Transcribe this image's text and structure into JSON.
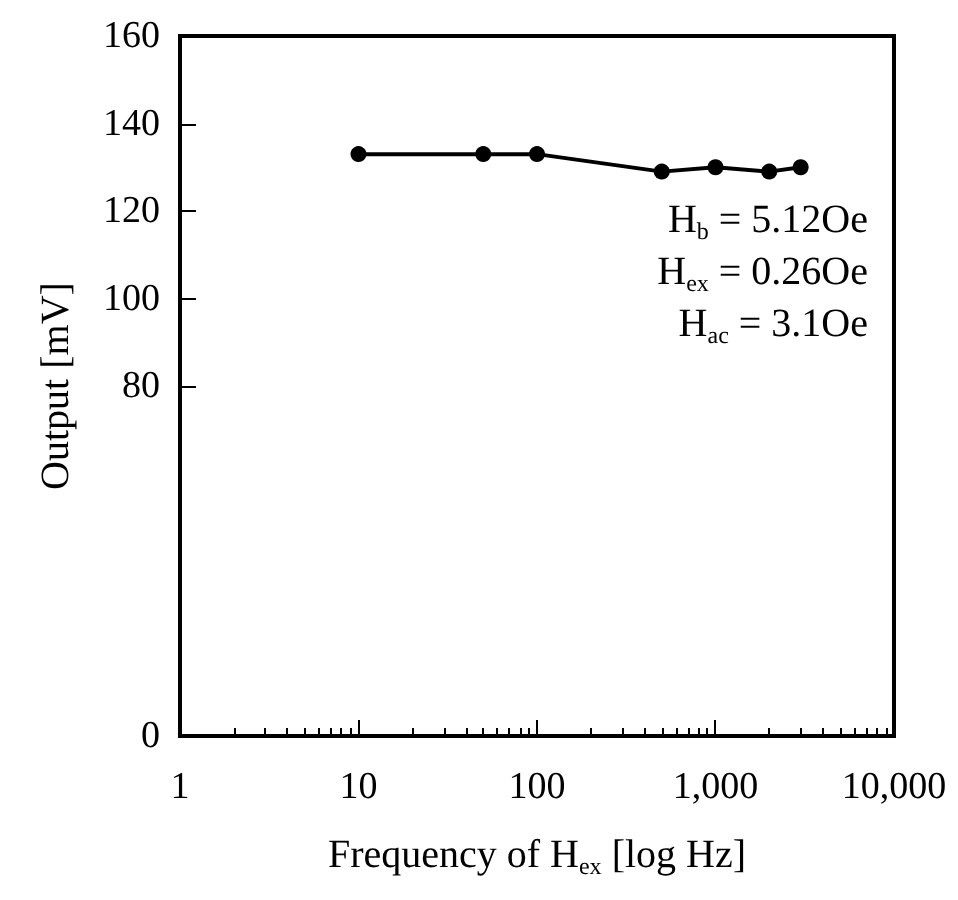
{
  "chart_data": {
    "type": "line",
    "xlabel": "Frequency of H$_{ex}$ [log Hz]",
    "ylabel": "Output [mV]",
    "annotations": [
      "H$_{b}$ = 5.12Oe",
      "H$_{ex}$ = 0.26Oe",
      "H$_{ac}$ = 3.1Oe"
    ],
    "x": [
      10,
      50,
      100,
      500,
      1000,
      2000,
      3000
    ],
    "series": [
      {
        "color": "#000000",
        "values": [
          133,
          133,
          133,
          129,
          130,
          129,
          130
        ]
      }
    ],
    "log": "x",
    "xlim": [
      1,
      10000
    ],
    "xticks": [
      1,
      10,
      100,
      {
        "value": 1000,
        "label": "1,000"
      },
      {
        "value": 10000,
        "label": "10,000"
      }
    ],
    "ylim": [
      0,
      160
    ],
    "yticks": [
      0,
      80,
      100,
      120,
      140,
      160
    ],
    "grid": false,
    "marker": "circle",
    "line_style": "solid"
  }
}
